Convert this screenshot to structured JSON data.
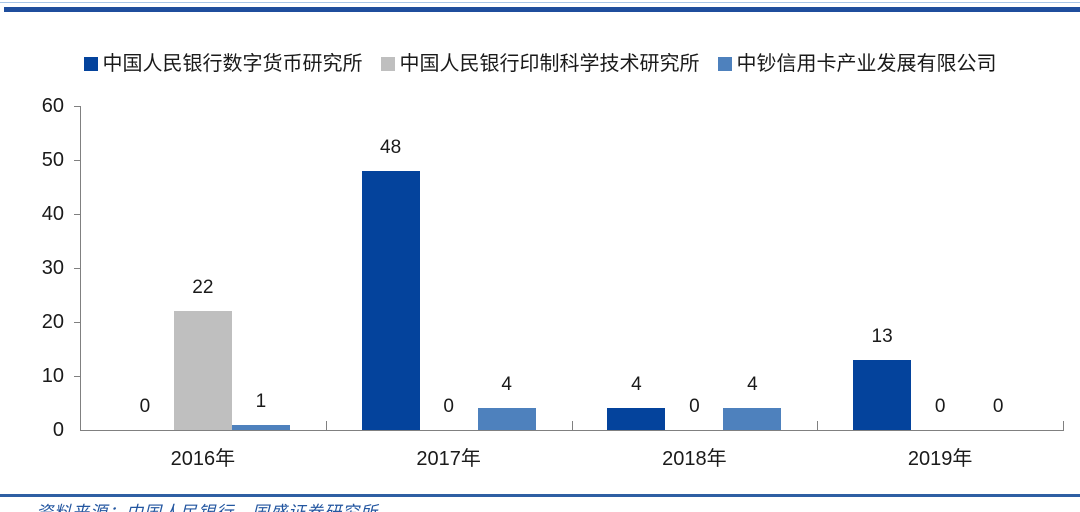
{
  "chart_data": {
    "type": "bar",
    "title": "",
    "xlabel": "",
    "ylabel": "",
    "categories": [
      "2016年",
      "2017年",
      "2018年",
      "2019年"
    ],
    "series": [
      {
        "name": "中国人民银行数字货币研究所",
        "color": "#04439c",
        "values": [
          0,
          48,
          4,
          13
        ]
      },
      {
        "name": "中国人民银行印制科学技术研究所",
        "color": "#bfbfbf",
        "values": [
          22,
          0,
          0,
          0
        ]
      },
      {
        "name": "中钞信用卡产业发展有限公司",
        "color": "#4e81bd",
        "values": [
          1,
          4,
          4,
          0
        ]
      }
    ],
    "ylim": [
      0,
      60
    ],
    "yticks": [
      0,
      10,
      20,
      30,
      40,
      50,
      60
    ],
    "grid": false,
    "data_labels": true,
    "legend_position": "top"
  },
  "footer": {
    "source_note": "资料来源：中国人民银行，国盛证券研究所"
  },
  "colors": {
    "axis": "#808080",
    "label_text": "#1a1a1a",
    "top_rule": "#1f4e9d",
    "top_rule_light": "#a8c6e8",
    "bottom_rule": "#2e5fa3",
    "source_text": "#2356a0"
  }
}
